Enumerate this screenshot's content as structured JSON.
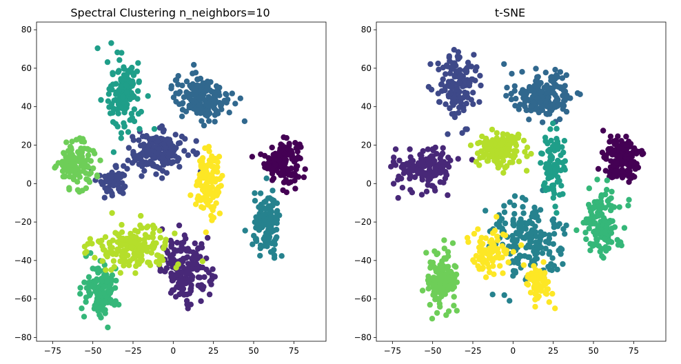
{
  "chart_data": [
    {
      "type": "scatter",
      "title": "Spectral Clustering n_neighbors=10",
      "xlabel": "",
      "ylabel": "",
      "xlim": [
        -85,
        95
      ],
      "ylim": [
        -82,
        84
      ],
      "xticks": [
        -75,
        -50,
        -25,
        0,
        25,
        50,
        75
      ],
      "yticks": [
        -80,
        -60,
        -40,
        -20,
        0,
        20,
        40,
        60,
        80
      ],
      "grid": false,
      "colormap": "viridis",
      "clusters": [
        {
          "label": 0,
          "color": "#440154",
          "center": [
            68,
            12
          ],
          "spread": [
            9,
            9
          ],
          "n": 150
        },
        {
          "label": 1,
          "color": "#482878",
          "center": [
            8,
            -45
          ],
          "spread": [
            13,
            13
          ],
          "n": 170
        },
        {
          "label": 2,
          "color": "#3e4989",
          "center": [
            -10,
            16
          ],
          "spread": [
            15,
            9
          ],
          "n": 160
        },
        {
          "label": 2,
          "color": "#3e4989",
          "center": [
            -37,
            2
          ],
          "spread": [
            8,
            7
          ],
          "n": 60
        },
        {
          "label": 3,
          "color": "#31688e",
          "center": [
            18,
            45
          ],
          "spread": [
            15,
            10
          ],
          "n": 170
        },
        {
          "label": 4,
          "color": "#26828e",
          "center": [
            58,
            -22
          ],
          "spread": [
            7,
            13
          ],
          "n": 130
        },
        {
          "label": 5,
          "color": "#1f9e89",
          "center": [
            -30,
            45
          ],
          "spread": [
            9,
            16
          ],
          "n": 130
        },
        {
          "label": 6,
          "color": "#35b779",
          "center": [
            -45,
            -55
          ],
          "spread": [
            9,
            12
          ],
          "n": 120
        },
        {
          "label": 7,
          "color": "#6ece58",
          "center": [
            -60,
            10
          ],
          "spread": [
            10,
            10
          ],
          "n": 120
        },
        {
          "label": 8,
          "color": "#b5de2b",
          "center": [
            -25,
            -33
          ],
          "spread": [
            20,
            9
          ],
          "n": 170
        },
        {
          "label": 9,
          "color": "#fde725",
          "center": [
            22,
            0
          ],
          "spread": [
            7,
            13
          ],
          "n": 120
        }
      ]
    },
    {
      "type": "scatter",
      "title": "t-SNE",
      "xlabel": "",
      "ylabel": "",
      "xlim": [
        -85,
        95
      ],
      "ylim": [
        -82,
        84
      ],
      "xticks": [
        -75,
        -50,
        -25,
        0,
        25,
        50,
        75
      ],
      "yticks": [
        -80,
        -60,
        -40,
        -20,
        0,
        20,
        40,
        60,
        80
      ],
      "grid": false,
      "colormap": "viridis",
      "clusters": [
        {
          "label": 0,
          "color": "#440154",
          "center": [
            68,
            12
          ],
          "spread": [
            9,
            9
          ],
          "n": 150
        },
        {
          "label": 1,
          "color": "#482878",
          "center": [
            -55,
            8
          ],
          "spread": [
            15,
            9
          ],
          "n": 160
        },
        {
          "label": 2,
          "color": "#3e4989",
          "center": [
            -35,
            50
          ],
          "spread": [
            10,
            15
          ],
          "n": 140
        },
        {
          "label": 3,
          "color": "#31688e",
          "center": [
            18,
            45
          ],
          "spread": [
            15,
            10
          ],
          "n": 170
        },
        {
          "label": 4,
          "color": "#26828e",
          "center": [
            8,
            -30
          ],
          "spread": [
            20,
            18
          ],
          "n": 180
        },
        {
          "label": 5,
          "color": "#1f9e89",
          "center": [
            25,
            10
          ],
          "spread": [
            7,
            15
          ],
          "n": 90
        },
        {
          "label": 6,
          "color": "#35b779",
          "center": [
            55,
            -20
          ],
          "spread": [
            10,
            14
          ],
          "n": 130
        },
        {
          "label": 7,
          "color": "#6ece58",
          "center": [
            -45,
            -50
          ],
          "spread": [
            9,
            13
          ],
          "n": 130
        },
        {
          "label": 8,
          "color": "#b5de2b",
          "center": [
            -8,
            18
          ],
          "spread": [
            13,
            8
          ],
          "n": 150
        },
        {
          "label": 9,
          "color": "#fde725",
          "center": [
            -15,
            -35
          ],
          "spread": [
            10,
            9
          ],
          "n": 80
        },
        {
          "label": 9,
          "color": "#fde725",
          "center": [
            15,
            -52
          ],
          "spread": [
            7,
            8
          ],
          "n": 60
        }
      ]
    }
  ]
}
